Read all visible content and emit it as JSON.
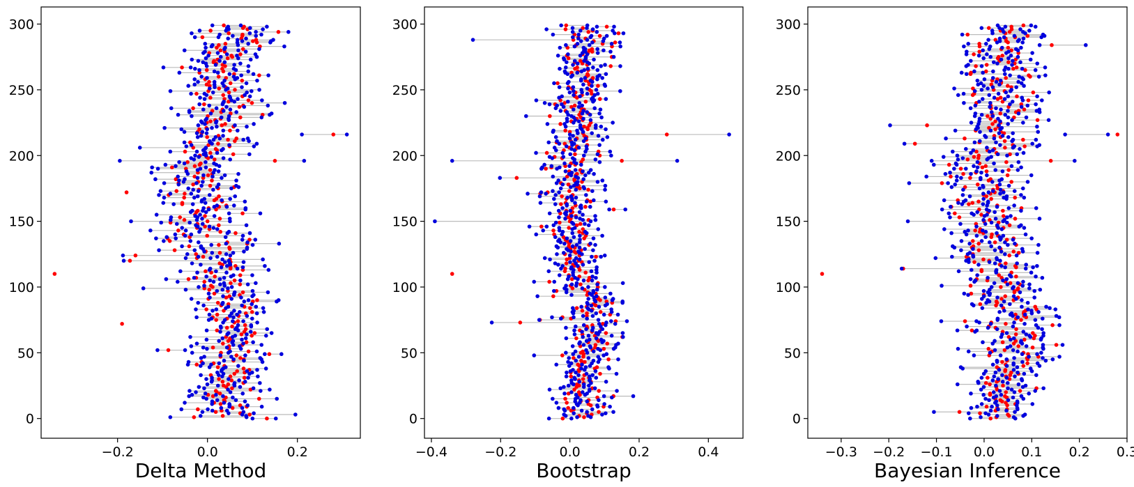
{
  "figure": {
    "colors": {
      "ci_line": "#bbbbbb",
      "estimate": "#ff0000",
      "interval_end": "#0000dd"
    }
  },
  "chart_data": [
    {
      "type": "scatter",
      "xlabel": "Delta Method",
      "ylabel": "",
      "title": "",
      "xlim": [
        -0.37,
        0.34
      ],
      "ylim": [
        -15,
        313
      ],
      "xticks": [
        -0.2,
        0.0,
        0.2
      ],
      "xtick_labels": [
        "−0.2",
        "0.0",
        "0.2"
      ],
      "yticks": [
        0,
        50,
        100,
        150,
        200,
        250,
        300
      ],
      "ytick_labels": [
        "0",
        "50",
        "100",
        "150",
        "200",
        "250",
        "300"
      ],
      "grid": false,
      "series": [
        {
          "role": "estimate",
          "color": "#ff0000"
        },
        {
          "role": "ci_lower",
          "color": "#0000dd"
        },
        {
          "role": "ci_upper",
          "color": "#0000dd"
        }
      ],
      "n_points": 300,
      "notable_points": [
        {
          "y": 110,
          "estimate": -0.34
        },
        {
          "y": 72,
          "estimate": -0.19
        },
        {
          "y": 172,
          "estimate": -0.18
        },
        {
          "y": 216,
          "estimate": 0.28,
          "lower": 0.21,
          "upper": 0.31
        },
        {
          "y": 196,
          "estimate": 0.15,
          "lower": -0.195,
          "upper": 0.215
        },
        {
          "y": 150,
          "estimate": 0.0,
          "lower": -0.17,
          "upper": 0.05
        }
      ]
    },
    {
      "type": "scatter",
      "xlabel": "Bootstrap",
      "ylabel": "",
      "title": "",
      "xlim": [
        -0.42,
        0.5
      ],
      "ylim": [
        -15,
        313
      ],
      "xticks": [
        -0.4,
        -0.2,
        0.0,
        0.2,
        0.4
      ],
      "xtick_labels": [
        "−0.4",
        "−0.2",
        "0.0",
        "0.2",
        "0.4"
      ],
      "yticks": [
        0,
        50,
        100,
        150,
        200,
        250,
        300
      ],
      "ytick_labels": [
        "0",
        "50",
        "100",
        "150",
        "200",
        "250",
        "300"
      ],
      "grid": false,
      "series": [
        {
          "role": "estimate",
          "color": "#ff0000"
        },
        {
          "role": "ci_lower",
          "color": "#0000dd"
        },
        {
          "role": "ci_upper",
          "color": "#0000dd"
        }
      ],
      "n_points": 300,
      "notable_points": [
        {
          "y": 110,
          "estimate": -0.34
        },
        {
          "y": 216,
          "estimate": 0.28,
          "lower": 0.0,
          "upper": 0.46
        },
        {
          "y": 196,
          "estimate": 0.15,
          "lower": -0.34,
          "upper": 0.31
        },
        {
          "y": 150,
          "estimate": 0.0,
          "lower": -0.39,
          "upper": 0.06
        },
        {
          "y": 288,
          "estimate": 0.01,
          "lower": -0.28,
          "upper": 0.05
        }
      ]
    },
    {
      "type": "scatter",
      "xlabel": "Bayesian Inference",
      "ylabel": "",
      "title": "",
      "xlim": [
        -0.37,
        0.3
      ],
      "ylim": [
        -15,
        313
      ],
      "xticks": [
        -0.3,
        -0.2,
        -0.1,
        0.0,
        0.1,
        0.2,
        0.3
      ],
      "xtick_labels": [
        "−0.3",
        "−0.2",
        "−0.1",
        "0.0",
        "0.1",
        "0.2",
        "0.3"
      ],
      "yticks": [
        0,
        50,
        100,
        150,
        200,
        250,
        300
      ],
      "ytick_labels": [
        "0",
        "50",
        "100",
        "150",
        "200",
        "250",
        "300"
      ],
      "grid": false,
      "series": [
        {
          "role": "estimate",
          "color": "#ff0000"
        },
        {
          "role": "ci_lower",
          "color": "#0000dd"
        },
        {
          "role": "ci_upper",
          "color": "#0000dd"
        }
      ],
      "n_points": 300,
      "notable_points": [
        {
          "y": 110,
          "estimate": -0.34
        },
        {
          "y": 216,
          "estimate": 0.28,
          "lower": 0.17,
          "upper": 0.26
        },
        {
          "y": 196,
          "estimate": 0.14,
          "lower": -0.11,
          "upper": 0.19
        },
        {
          "y": 150,
          "estimate": 0.0,
          "lower": -0.16,
          "upper": 0.04
        }
      ]
    }
  ]
}
